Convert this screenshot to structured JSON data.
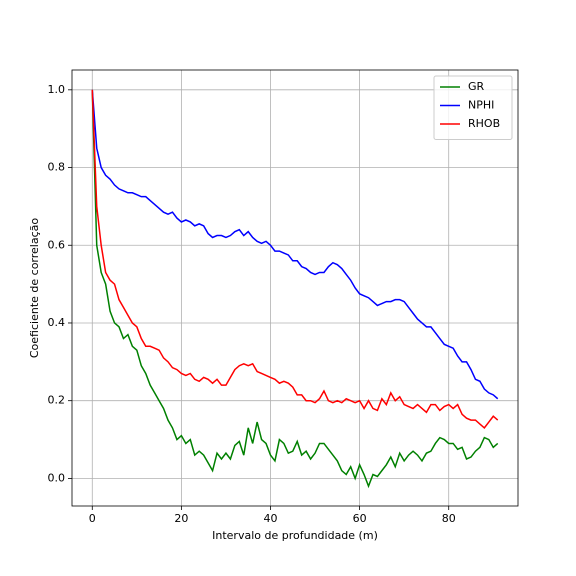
{
  "chart_data": {
    "type": "line",
    "xlabel": "Intervalo de profundidade (m)",
    "ylabel": "Coeficiente de correlação",
    "x": [
      0,
      1,
      2,
      3,
      4,
      5,
      6,
      7,
      8,
      9,
      10,
      11,
      12,
      13,
      14,
      15,
      16,
      17,
      18,
      19,
      20,
      21,
      22,
      23,
      24,
      25,
      26,
      27,
      28,
      29,
      30,
      31,
      32,
      33,
      34,
      35,
      36,
      37,
      38,
      39,
      40,
      41,
      42,
      43,
      44,
      45,
      46,
      47,
      48,
      49,
      50,
      51,
      52,
      53,
      54,
      55,
      56,
      57,
      58,
      59,
      60,
      61,
      62,
      63,
      64,
      65,
      66,
      67,
      68,
      69,
      70,
      71,
      72,
      73,
      74,
      75,
      76,
      77,
      78,
      79,
      80,
      81,
      82,
      83,
      84,
      85,
      86,
      87,
      88,
      89,
      90,
      91
    ],
    "series": [
      {
        "name": "GR",
        "color": "#008000",
        "values": [
          1.0,
          0.6,
          0.53,
          0.5,
          0.43,
          0.4,
          0.39,
          0.36,
          0.37,
          0.34,
          0.33,
          0.29,
          0.27,
          0.24,
          0.22,
          0.2,
          0.18,
          0.15,
          0.13,
          0.1,
          0.11,
          0.09,
          0.1,
          0.06,
          0.07,
          0.06,
          0.04,
          0.02,
          0.065,
          0.05,
          0.065,
          0.05,
          0.085,
          0.095,
          0.06,
          0.13,
          0.09,
          0.145,
          0.1,
          0.09,
          0.06,
          0.045,
          0.1,
          0.09,
          0.065,
          0.07,
          0.095,
          0.06,
          0.07,
          0.05,
          0.065,
          0.09,
          0.09,
          0.075,
          0.06,
          0.045,
          0.02,
          0.01,
          0.03,
          0.0,
          0.035,
          0.01,
          -0.02,
          0.01,
          0.005,
          0.02,
          0.035,
          0.055,
          0.03,
          0.065,
          0.045,
          0.06,
          0.07,
          0.06,
          0.045,
          0.065,
          0.07,
          0.09,
          0.105,
          0.1,
          0.09,
          0.09,
          0.075,
          0.08,
          0.05,
          0.055,
          0.07,
          0.08,
          0.105,
          0.1,
          0.08,
          0.09
        ]
      },
      {
        "name": "NPHI",
        "color": "#0000ff",
        "values": [
          1.0,
          0.85,
          0.8,
          0.78,
          0.77,
          0.755,
          0.745,
          0.74,
          0.735,
          0.735,
          0.73,
          0.725,
          0.725,
          0.715,
          0.705,
          0.695,
          0.685,
          0.68,
          0.685,
          0.67,
          0.66,
          0.665,
          0.66,
          0.65,
          0.655,
          0.65,
          0.63,
          0.62,
          0.625,
          0.625,
          0.62,
          0.625,
          0.635,
          0.64,
          0.625,
          0.635,
          0.62,
          0.61,
          0.605,
          0.61,
          0.6,
          0.585,
          0.585,
          0.58,
          0.575,
          0.56,
          0.56,
          0.545,
          0.54,
          0.53,
          0.525,
          0.53,
          0.53,
          0.545,
          0.555,
          0.55,
          0.54,
          0.525,
          0.51,
          0.49,
          0.475,
          0.47,
          0.465,
          0.455,
          0.445,
          0.45,
          0.455,
          0.455,
          0.46,
          0.46,
          0.455,
          0.44,
          0.425,
          0.41,
          0.4,
          0.39,
          0.39,
          0.375,
          0.36,
          0.345,
          0.34,
          0.335,
          0.315,
          0.3,
          0.3,
          0.28,
          0.255,
          0.25,
          0.23,
          0.22,
          0.215,
          0.205
        ]
      },
      {
        "name": "RHOB",
        "color": "#ff0000",
        "values": [
          1.0,
          0.7,
          0.6,
          0.53,
          0.51,
          0.5,
          0.46,
          0.44,
          0.42,
          0.4,
          0.39,
          0.36,
          0.34,
          0.34,
          0.335,
          0.33,
          0.31,
          0.3,
          0.285,
          0.28,
          0.27,
          0.265,
          0.27,
          0.255,
          0.25,
          0.26,
          0.255,
          0.245,
          0.255,
          0.24,
          0.24,
          0.26,
          0.28,
          0.29,
          0.295,
          0.29,
          0.295,
          0.275,
          0.27,
          0.265,
          0.26,
          0.255,
          0.245,
          0.25,
          0.245,
          0.235,
          0.215,
          0.215,
          0.2,
          0.2,
          0.195,
          0.205,
          0.225,
          0.2,
          0.195,
          0.2,
          0.195,
          0.205,
          0.2,
          0.195,
          0.2,
          0.18,
          0.2,
          0.18,
          0.175,
          0.205,
          0.19,
          0.22,
          0.2,
          0.21,
          0.19,
          0.185,
          0.18,
          0.19,
          0.18,
          0.17,
          0.19,
          0.19,
          0.175,
          0.185,
          0.19,
          0.18,
          0.19,
          0.165,
          0.155,
          0.15,
          0.15,
          0.14,
          0.13,
          0.145,
          0.16,
          0.15
        ]
      }
    ],
    "xlim": [
      -4.55,
      95.55
    ],
    "xticks": [
      0,
      20,
      40,
      60,
      80
    ],
    "ylim": [
      -0.071,
      1.051
    ],
    "yticks": [
      {
        "value": 0.0,
        "label": "0.0"
      },
      {
        "value": 0.2,
        "label": "0.2"
      },
      {
        "value": 0.4,
        "label": "0.4"
      },
      {
        "value": 0.6,
        "label": "0.6"
      },
      {
        "value": 0.8,
        "label": "0.8"
      },
      {
        "value": 1.0,
        "label": "1.0"
      }
    ],
    "grid": true,
    "legend": "upper right"
  }
}
